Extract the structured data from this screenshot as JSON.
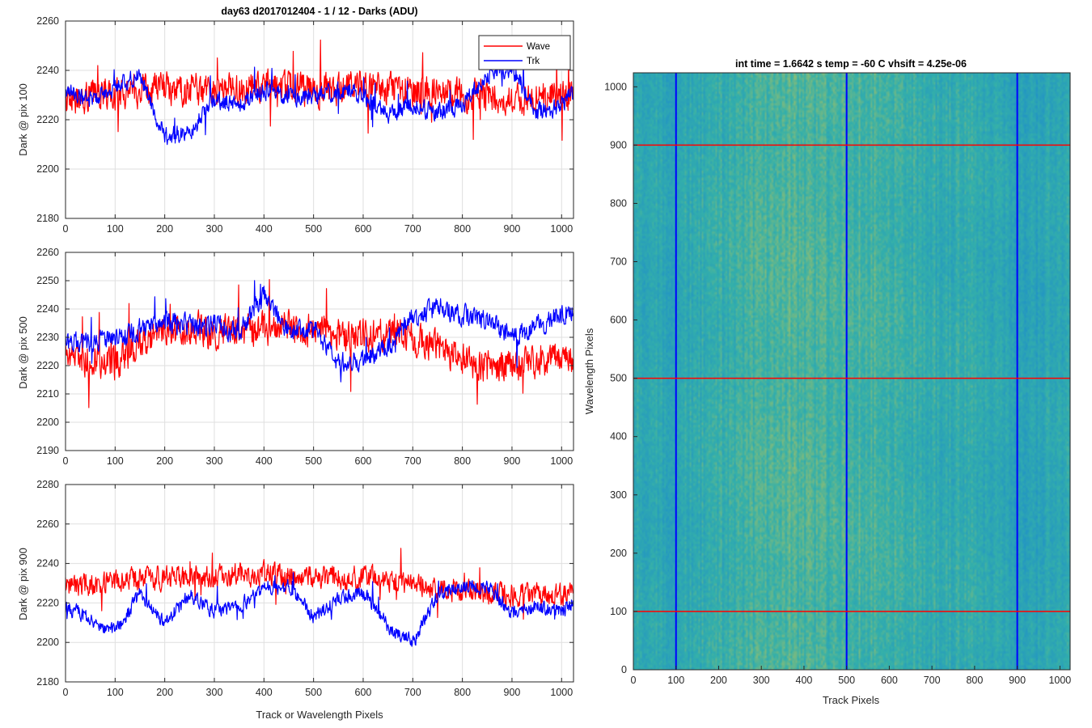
{
  "figure_title": "day63 d2017012404 - 1 / 12 - Darks (ADU)",
  "colors": {
    "wave": "#ff0000",
    "trk": "#0000ff",
    "grid": "#dfdfdf",
    "axis": "#262626",
    "heatmap_low": "#1f8fc9",
    "heatmap_high": "#b8c25a"
  },
  "legend": {
    "entries": [
      "Wave",
      "Trk"
    ],
    "location": "top-right"
  },
  "x_common_label": "Track or Wavelength Pixels",
  "heatmap_title": "int time = 1.6642 s    temp = -60 C    vhsift = 4.25e-06",
  "chart_data": [
    {
      "type": "line",
      "ylabel": "Dark @ pix 100",
      "xlim": [
        0,
        1024
      ],
      "ylim": [
        2180,
        2260
      ],
      "x_ticks": [
        0,
        100,
        200,
        300,
        400,
        500,
        600,
        700,
        800,
        900,
        1000
      ],
      "y_ticks": [
        2180,
        2200,
        2220,
        2240,
        2260
      ],
      "grid": true,
      "x": [
        0,
        50,
        100,
        150,
        200,
        250,
        300,
        350,
        400,
        450,
        500,
        550,
        600,
        650,
        700,
        750,
        800,
        850,
        900,
        950,
        1000,
        1024
      ],
      "series": [
        {
          "name": "Wave",
          "values": [
            2228,
            2230,
            2231,
            2232,
            2233,
            2232,
            2231,
            2232,
            2233,
            2233,
            2232,
            2232,
            2233,
            2233,
            2232,
            2232,
            2230,
            2230,
            2229,
            2229,
            2230,
            2230
          ],
          "noise": 9
        },
        {
          "name": "Trk",
          "values": [
            2232,
            2228,
            2233,
            2238,
            2213,
            2215,
            2228,
            2226,
            2232,
            2230,
            2229,
            2232,
            2230,
            2222,
            2226,
            2223,
            2226,
            2238,
            2241,
            2223,
            2226,
            2231
          ],
          "noise": 5
        }
      ]
    },
    {
      "type": "line",
      "ylabel": "Dark @ pix 500",
      "xlim": [
        0,
        1024
      ],
      "ylim": [
        2190,
        2260
      ],
      "x_ticks": [
        0,
        100,
        200,
        300,
        400,
        500,
        600,
        700,
        800,
        900,
        1000
      ],
      "y_ticks": [
        2190,
        2200,
        2210,
        2220,
        2230,
        2240,
        2250,
        2260
      ],
      "grid": true,
      "x": [
        0,
        50,
        100,
        150,
        200,
        250,
        300,
        350,
        400,
        450,
        500,
        550,
        600,
        650,
        700,
        750,
        800,
        850,
        900,
        950,
        1000,
        1024
      ],
      "series": [
        {
          "name": "Wave",
          "values": [
            2224,
            2222,
            2221,
            2228,
            2233,
            2233,
            2232,
            2233,
            2233,
            2234,
            2232,
            2231,
            2230,
            2231,
            2229,
            2228,
            2222,
            2219,
            2220,
            2222,
            2223,
            2224
          ],
          "noise": 8
        },
        {
          "name": "Trk",
          "values": [
            2228,
            2228,
            2230,
            2233,
            2236,
            2234,
            2235,
            2231,
            2246,
            2232,
            2233,
            2221,
            2222,
            2227,
            2237,
            2241,
            2238,
            2236,
            2230,
            2234,
            2238,
            2240
          ],
          "noise": 5
        }
      ]
    },
    {
      "type": "line",
      "ylabel": "Dark @ pix 900",
      "xlim": [
        0,
        1024
      ],
      "ylim": [
        2180,
        2280
      ],
      "x_ticks": [
        0,
        100,
        200,
        300,
        400,
        500,
        600,
        700,
        800,
        900,
        1000
      ],
      "y_ticks": [
        2180,
        2200,
        2220,
        2240,
        2260,
        2280
      ],
      "grid": true,
      "x": [
        0,
        50,
        100,
        150,
        200,
        250,
        300,
        350,
        400,
        450,
        500,
        550,
        600,
        650,
        700,
        750,
        800,
        850,
        900,
        950,
        1000,
        1024
      ],
      "series": [
        {
          "name": "Wave",
          "values": [
            2228,
            2229,
            2230,
            2232,
            2233,
            2233,
            2233,
            2234,
            2235,
            2234,
            2234,
            2233,
            2233,
            2232,
            2230,
            2228,
            2226,
            2225,
            2224,
            2224,
            2224,
            2225
          ],
          "noise": 8
        },
        {
          "name": "Trk",
          "values": [
            2218,
            2212,
            2205,
            2225,
            2210,
            2224,
            2216,
            2218,
            2228,
            2228,
            2213,
            2222,
            2226,
            2208,
            2200,
            2224,
            2228,
            2228,
            2215,
            2218,
            2216,
            2220
          ],
          "noise": 5
        }
      ]
    },
    {
      "type": "heatmap",
      "xlabel": "Track Pixels",
      "ylabel": "Wavelength Pixels",
      "xlim": [
        0,
        1024
      ],
      "ylim": [
        0,
        1024
      ],
      "x_ticks": [
        0,
        100,
        200,
        300,
        400,
        500,
        600,
        700,
        800,
        900,
        1000
      ],
      "y_ticks": [
        0,
        100,
        200,
        300,
        400,
        500,
        600,
        700,
        800,
        900,
        1000
      ],
      "vertical_markers": {
        "x": [
          100,
          500,
          900
        ],
        "color": "#0000ff"
      },
      "horizontal_markers": {
        "y": [
          100,
          500,
          900
        ],
        "color": "#ff0000"
      }
    }
  ]
}
